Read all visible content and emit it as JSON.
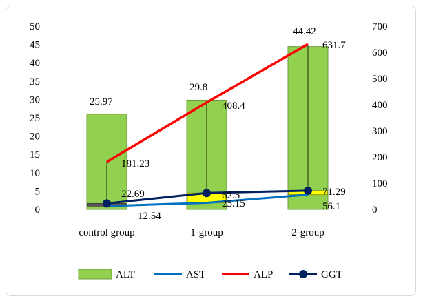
{
  "chart_data": {
    "type": "bar",
    "title": "",
    "categories": [
      "control group",
      "1-group",
      "2-group"
    ],
    "left_axis": {
      "min": 0,
      "max": 50,
      "step": 5
    },
    "right_axis": {
      "min": 0,
      "max": 700,
      "step": 100
    },
    "series": [
      {
        "name": "ALT",
        "type": "bar",
        "axis": "left",
        "values": [
          25.97,
          29.8,
          44.42
        ],
        "color": "#92d050"
      },
      {
        "name": "AST",
        "type": "line",
        "axis": "right",
        "values": [
          12.54,
          25.15,
          56.1
        ],
        "color": "#0070c0"
      },
      {
        "name": "ALP",
        "type": "line",
        "axis": "right",
        "values": [
          181.23,
          408.4,
          631.7
        ],
        "color": "#ff0000"
      },
      {
        "name": "GGT",
        "type": "line-marker",
        "axis": "right",
        "values": [
          22.69,
          62.5,
          71.29
        ],
        "color": "#002060"
      }
    ],
    "data_labels": [
      {
        "text": "25.97",
        "series": "ALT",
        "index": 0
      },
      {
        "text": "29.8",
        "series": "ALT",
        "index": 1
      },
      {
        "text": "44.42",
        "series": "ALT",
        "index": 2
      },
      {
        "text": "181.23",
        "series": "ALP",
        "index": 0
      },
      {
        "text": "408.4",
        "series": "ALP",
        "index": 1
      },
      {
        "text": "631.7",
        "series": "ALP",
        "index": 2
      },
      {
        "text": "22.69",
        "series": "GGT",
        "index": 0
      },
      {
        "text": "62.5",
        "series": "GGT",
        "index": 1
      },
      {
        "text": "71.29",
        "series": "GGT",
        "index": 2
      },
      {
        "text": "12.54",
        "series": "AST",
        "index": 0
      },
      {
        "text": "25.15",
        "series": "AST",
        "index": 1
      },
      {
        "text": "56.1",
        "series": "AST",
        "index": 2
      }
    ],
    "legend_position": "bottom",
    "grid": false
  }
}
